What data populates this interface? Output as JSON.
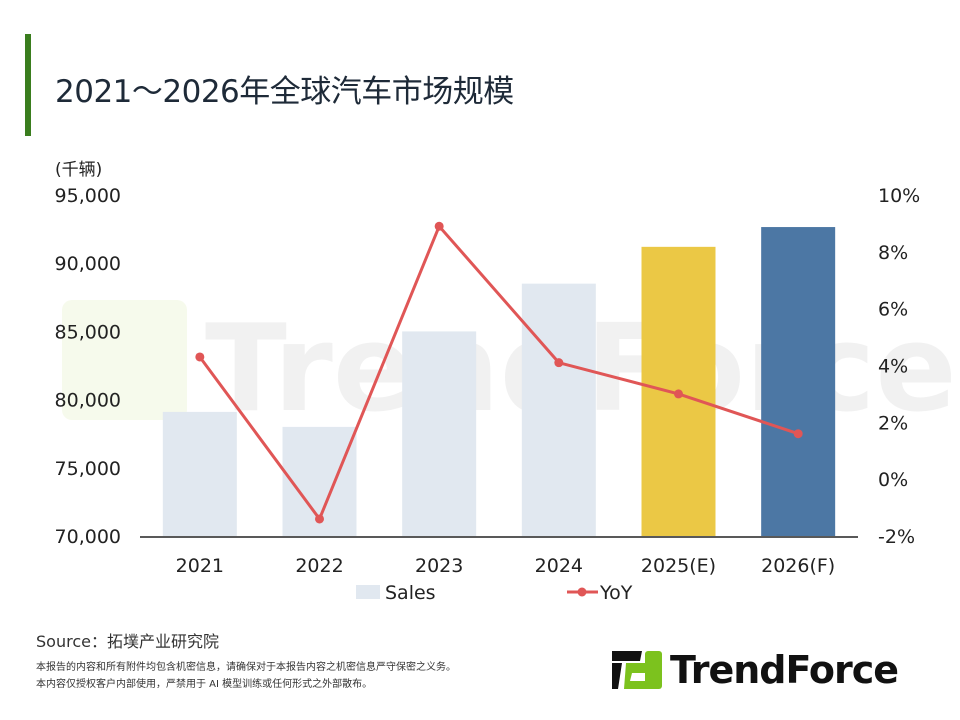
{
  "header": {
    "title": "2021～2026年全球汽车市场规模",
    "accent_color": "#3a7d1e"
  },
  "chart_data": {
    "type": "bar+line",
    "categories": [
      "2021",
      "2022",
      "2023",
      "2024",
      "2025(E)",
      "2026(F)"
    ],
    "series": [
      {
        "name": "Sales",
        "type": "bar",
        "axis": "left",
        "values": [
          79100,
          78000,
          85000,
          88500,
          91200,
          92650
        ],
        "colors": [
          "#e1e8f0",
          "#e1e8f0",
          "#e1e8f0",
          "#e1e8f0",
          "#ebc845",
          "#4c77a4"
        ]
      },
      {
        "name": "YoY",
        "type": "line",
        "axis": "right",
        "values": [
          4.3,
          -1.4,
          8.9,
          4.1,
          3.0,
          1.6
        ],
        "color": "#e05656"
      }
    ],
    "left_axis": {
      "unit_label": "(千辆)",
      "range": [
        70000,
        95000
      ],
      "ticks": [
        "70,000",
        "75,000",
        "80,000",
        "85,000",
        "90,000",
        "95,000"
      ]
    },
    "right_axis": {
      "range": [
        -2,
        10
      ],
      "ticks": [
        "-2%",
        "0%",
        "2%",
        "4%",
        "6%",
        "8%",
        "10%"
      ]
    },
    "grid": false,
    "legend_position": "bottom",
    "watermark": "TrendForce"
  },
  "footer": {
    "source": "Source：拓墣产业研究院",
    "notes": [
      "本报告的内容和所有附件均包含机密信息，请确保对于本报告内容之机密信息严守保密之义务。",
      "本内容仅授权客户内部使用，严禁用于 AI 模型训练或任何形式之外部散布。"
    ],
    "logo_text": "TrendForce"
  }
}
